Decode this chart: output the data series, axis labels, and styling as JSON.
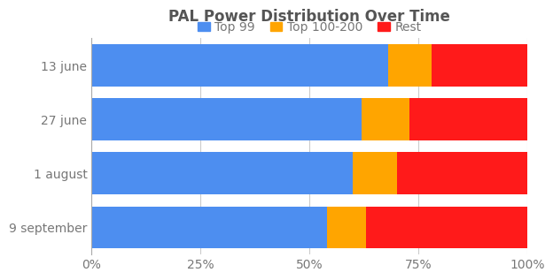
{
  "title": "PAL Power Distribution Over Time",
  "categories": [
    "13 june",
    "27 june",
    "1 august",
    "9 september"
  ],
  "series": [
    {
      "label": "Top 99",
      "color": "#4d8ef0",
      "values": [
        0.68,
        0.62,
        0.6,
        0.54
      ]
    },
    {
      "label": "Top 100-200",
      "color": "#ffa500",
      "values": [
        0.1,
        0.11,
        0.1,
        0.09
      ]
    },
    {
      "label": "Rest",
      "color": "#ff1a1a",
      "values": [
        0.22,
        0.27,
        0.3,
        0.37
      ]
    }
  ],
  "xticks": [
    0,
    0.25,
    0.5,
    0.75,
    1.0
  ],
  "xticklabels": [
    "0%",
    "25%",
    "50%",
    "75%",
    "100%"
  ],
  "background_color": "#ffffff",
  "grid_color": "#cccccc",
  "title_color": "#555555",
  "label_color": "#777777",
  "bar_height": 0.78,
  "title_fontsize": 12,
  "legend_fontsize": 10,
  "tick_fontsize": 10
}
